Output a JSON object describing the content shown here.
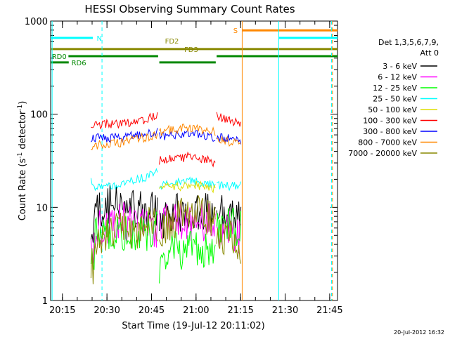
{
  "chart_data": {
    "type": "line",
    "title": "HESSI Observing Summary Count Rates",
    "xlabel": "Start Time (19-Jul-12 20:11:02)",
    "ylabel_parts": [
      "Count Rate (s",
      "-1",
      " detector",
      "-1",
      ")"
    ],
    "x_unit": "minutes after 20:11:02 UT",
    "xlim": [
      0,
      96.6
    ],
    "ylim": [
      1,
      1000
    ],
    "y_scale": "log",
    "x_ticks": [
      {
        "value": 3.97,
        "label": "20:15"
      },
      {
        "value": 18.97,
        "label": "20:30"
      },
      {
        "value": 33.97,
        "label": "20:45"
      },
      {
        "value": 48.97,
        "label": "21:00"
      },
      {
        "value": 63.97,
        "label": "21:15"
      },
      {
        "value": 78.97,
        "label": "21:30"
      },
      {
        "value": 93.97,
        "label": "21:45"
      }
    ],
    "y_ticks": [
      {
        "value": 1,
        "label": "1"
      },
      {
        "value": 10,
        "label": "10"
      },
      {
        "value": 100,
        "label": "100"
      },
      {
        "value": 1000,
        "label": "1000"
      }
    ],
    "legend": {
      "placement": "right",
      "header": [
        "Det 1,3,5,6,7,9,",
        "Att 0"
      ]
    },
    "data_gaps": [
      [
        0,
        13.6
      ],
      [
        64.2,
        96.6
      ]
    ],
    "series": [
      {
        "name": "3 - 6 keV",
        "color": "#000000",
        "segments": [
          [
            [
              13.6,
              5
            ],
            [
              14.5,
              3
            ],
            [
              15,
              9
            ],
            [
              20,
              11
            ],
            [
              25,
              10
            ],
            [
              30,
              9
            ],
            [
              36.2,
              9
            ]
          ],
          [
            [
              36.6,
              7
            ],
            [
              40,
              8
            ],
            [
              44,
              9
            ],
            [
              48,
              9
            ],
            [
              52,
              9
            ],
            [
              55,
              9
            ],
            [
              55.6,
              9
            ]
          ],
          [
            [
              55.9,
              9
            ],
            [
              58,
              8
            ],
            [
              62,
              7
            ],
            [
              64.2,
              7
            ]
          ]
        ]
      },
      {
        "name": "6 - 12 keV",
        "color": "#ff00ff",
        "segments": [
          [
            [
              13.6,
              4
            ],
            [
              14.5,
              3
            ],
            [
              15,
              6
            ],
            [
              20,
              6.5
            ],
            [
              25,
              7
            ],
            [
              30,
              6.5
            ],
            [
              36.2,
              6
            ]
          ],
          [
            [
              36.6,
              6
            ],
            [
              40,
              7
            ],
            [
              44,
              7.5
            ],
            [
              48,
              7
            ],
            [
              52,
              7
            ],
            [
              55.6,
              6.5
            ]
          ],
          [
            [
              55.9,
              6
            ],
            [
              60,
              5.5
            ],
            [
              64.2,
              5
            ]
          ]
        ]
      },
      {
        "name": "12 - 25 keV",
        "color": "#00ff00",
        "segments": [
          [
            [
              13.6,
              3
            ],
            [
              14.5,
              2.2
            ],
            [
              15,
              5.5
            ],
            [
              20,
              5.5
            ],
            [
              25,
              5.5
            ],
            [
              30,
              5.5
            ],
            [
              36.2,
              5.5
            ]
          ],
          [
            [
              36.6,
              2.5
            ],
            [
              37,
              3.3
            ],
            [
              40,
              3.3
            ],
            [
              44,
              3.4
            ],
            [
              48,
              3.4
            ],
            [
              52,
              3.3
            ],
            [
              55.6,
              3.3
            ]
          ],
          [
            [
              55.9,
              6
            ],
            [
              60,
              6
            ],
            [
              64.2,
              6
            ]
          ]
        ]
      },
      {
        "name": "25 - 50 keV",
        "color": "#00ffff",
        "segments": [
          [
            [
              13.6,
              20
            ],
            [
              14.5,
              17
            ],
            [
              20,
              17
            ],
            [
              25,
              18.5
            ],
            [
              30,
              20
            ],
            [
              35,
              23
            ],
            [
              36.2,
              24
            ]
          ],
          [
            [
              36.6,
              17
            ],
            [
              40,
              18
            ],
            [
              44,
              19
            ],
            [
              48,
              19
            ],
            [
              52,
              18
            ],
            [
              55.6,
              17.5
            ]
          ],
          [
            [
              55.9,
              17
            ],
            [
              60,
              17
            ],
            [
              64.2,
              17
            ]
          ]
        ]
      },
      {
        "name": "50 - 100 keV",
        "color": "#dddd00",
        "segments": [
          [
            [
              36.6,
              16
            ],
            [
              40,
              16.5
            ],
            [
              44,
              17
            ],
            [
              48,
              17.5
            ],
            [
              52,
              17
            ],
            [
              55.6,
              16
            ]
          ]
        ]
      },
      {
        "name": "100 - 300 keV",
        "color": "#ff0000",
        "segments": [
          [
            [
              13.6,
              77
            ],
            [
              20,
              78
            ],
            [
              25,
              80
            ],
            [
              30,
              85
            ],
            [
              35,
              93
            ],
            [
              36.2,
              100
            ]
          ],
          [
            [
              36.6,
              32
            ],
            [
              40,
              33
            ],
            [
              44,
              34
            ],
            [
              46,
              35
            ],
            [
              48,
              35
            ],
            [
              50,
              34
            ],
            [
              52,
              33
            ],
            [
              55.6,
              30
            ]
          ],
          [
            [
              55.9,
              100
            ],
            [
              58,
              90
            ],
            [
              62,
              82
            ],
            [
              64.2,
              80
            ]
          ]
        ]
      },
      {
        "name": "300 - 800 keV",
        "color": "#0000ff",
        "segments": [
          [
            [
              13.6,
              56
            ],
            [
              20,
              56
            ],
            [
              25,
              57
            ],
            [
              30,
              60
            ],
            [
              35,
              64
            ],
            [
              36.2,
              66
            ]
          ],
          [
            [
              36.6,
              58
            ],
            [
              40,
              60
            ],
            [
              44,
              62
            ],
            [
              48,
              61
            ],
            [
              52,
              59
            ],
            [
              55.6,
              56
            ]
          ],
          [
            [
              55.9,
              56
            ],
            [
              60,
              55
            ],
            [
              64.2,
              53
            ]
          ]
        ]
      },
      {
        "name": "800 - 7000 keV",
        "color": "#ff8800",
        "segments": [
          [
            [
              13.6,
              46
            ],
            [
              20,
              48
            ],
            [
              25,
              50
            ],
            [
              30,
              55
            ],
            [
              35,
              60
            ],
            [
              36.2,
              62
            ]
          ],
          [
            [
              36.6,
              64
            ],
            [
              40,
              68
            ],
            [
              44,
              70
            ],
            [
              48,
              70
            ],
            [
              52,
              67
            ],
            [
              55.6,
              63
            ]
          ],
          [
            [
              55.9,
              55
            ],
            [
              60,
              50
            ],
            [
              64.2,
              46
            ]
          ]
        ]
      },
      {
        "name": "7000 - 20000 keV",
        "color": "#888800",
        "segments": [
          [
            [
              13.6,
              2.7
            ],
            [
              14.5,
              2.2
            ],
            [
              15,
              5
            ],
            [
              20,
              5
            ],
            [
              25,
              5.5
            ],
            [
              30,
              6
            ],
            [
              36.2,
              7
            ]
          ],
          [
            [
              36.6,
              6
            ],
            [
              40,
              7
            ],
            [
              44,
              8
            ],
            [
              48,
              8.5
            ],
            [
              52,
              8
            ],
            [
              55.6,
              7
            ]
          ],
          [
            [
              55.9,
              5
            ],
            [
              60,
              4.5
            ],
            [
              64.2,
              4
            ]
          ]
        ]
      }
    ],
    "flags": [
      {
        "label": "N",
        "color": "#00ffff",
        "y_level": 660,
        "dashed": false,
        "segments": [
          [
            0,
            14.2
          ],
          [
            76.8,
            96.6
          ]
        ]
      },
      {
        "label": "S",
        "color": "#ff8800",
        "y_level": 795,
        "dashed": false,
        "segments": [
          [
            64.5,
            96.6
          ]
        ]
      },
      {
        "label": "FD2",
        "color": "#888800",
        "y_level": 500,
        "dashed": false,
        "segments": [
          [
            0,
            96.6
          ]
        ]
      },
      {
        "label": "FD3",
        "color": "#888800",
        "y_level": 500,
        "dashed": false,
        "segments": []
      },
      {
        "label": "RD0",
        "color": "#008800",
        "y_level": 420,
        "dashed": false,
        "segments": [
          [
            6,
            36.2
          ],
          [
            55.9,
            96.6
          ]
        ]
      },
      {
        "label": "RD6",
        "color": "#008800",
        "y_level": 360,
        "dashed": false,
        "segments": [
          [
            0,
            6.1
          ],
          [
            36.6,
            55.6
          ]
        ]
      }
    ],
    "vertical_markers": [
      {
        "color": "#00ffff",
        "x": 0.5,
        "dashed": false
      },
      {
        "color": "#00ffff",
        "x": 17.3,
        "dashed": true
      },
      {
        "color": "#ff8800",
        "x": 64.5,
        "dashed": false
      },
      {
        "color": "#00ffff",
        "x": 76.8,
        "dashed": false
      },
      {
        "color": "#00ffff",
        "x": 94.6,
        "dashed": true
      },
      {
        "color": "#ff8800",
        "x": 94.9,
        "dashed": true
      }
    ]
  },
  "timestamp": "20-Jul-2012 16:32"
}
